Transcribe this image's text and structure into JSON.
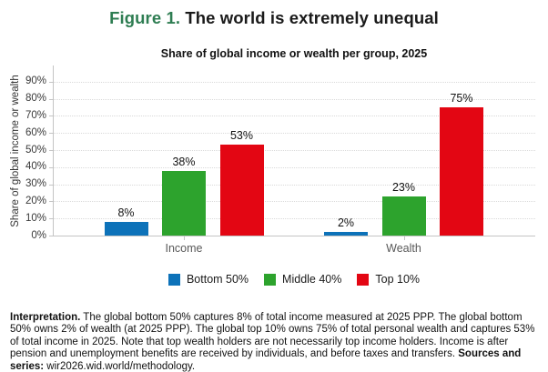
{
  "page": {
    "figure_label": "Figure 1.",
    "title": "The world is extremely unequal"
  },
  "chart_data": {
    "type": "bar",
    "title": "Share of global income or wealth per group, 2025",
    "xlabel": "",
    "ylabel": "Share of global income or wealth",
    "categories": [
      "Income",
      "Wealth"
    ],
    "series": [
      {
        "name": "Bottom 50%",
        "color": "#0d72b9",
        "values": [
          8,
          2
        ]
      },
      {
        "name": "Middle 40%",
        "color": "#2da32d",
        "values": [
          38,
          23
        ]
      },
      {
        "name": "Top 10%",
        "color": "#e30613",
        "values": [
          53,
          75
        ]
      }
    ],
    "value_label_format": "percent",
    "yticks": [
      0,
      10,
      20,
      30,
      40,
      50,
      60,
      70,
      80,
      90
    ],
    "ytick_suffix": "%",
    "ylim": [
      0,
      98
    ],
    "grid": "horizontal-dotted",
    "legend_position": "bottom",
    "colors": {
      "figure_label_green": "#2e7d52",
      "title_text": "#1a1a1a",
      "gridline": "#d9d9d9",
      "axis": "#c4c4c4"
    }
  },
  "footer": {
    "segments": [
      {
        "text": "Interpretation.",
        "bold": true
      },
      {
        "text": " The global bottom 50% captures 8% of total income measured at 2025 PPP. The global bottom 50% owns 2% of wealth (at 2025 PPP). The global top 10% owns 75% of total personal wealth and captures 53% of total income in 2025. Note that top wealth holders are not necessarily top income holders. Income is after pension and unemployment benefits are received by individuals, and before taxes and transfers. ",
        "bold": false
      },
      {
        "text": "Sources and series:",
        "bold": true
      },
      {
        "text": " wir2026.wid.world/methodology.",
        "bold": false
      }
    ]
  }
}
